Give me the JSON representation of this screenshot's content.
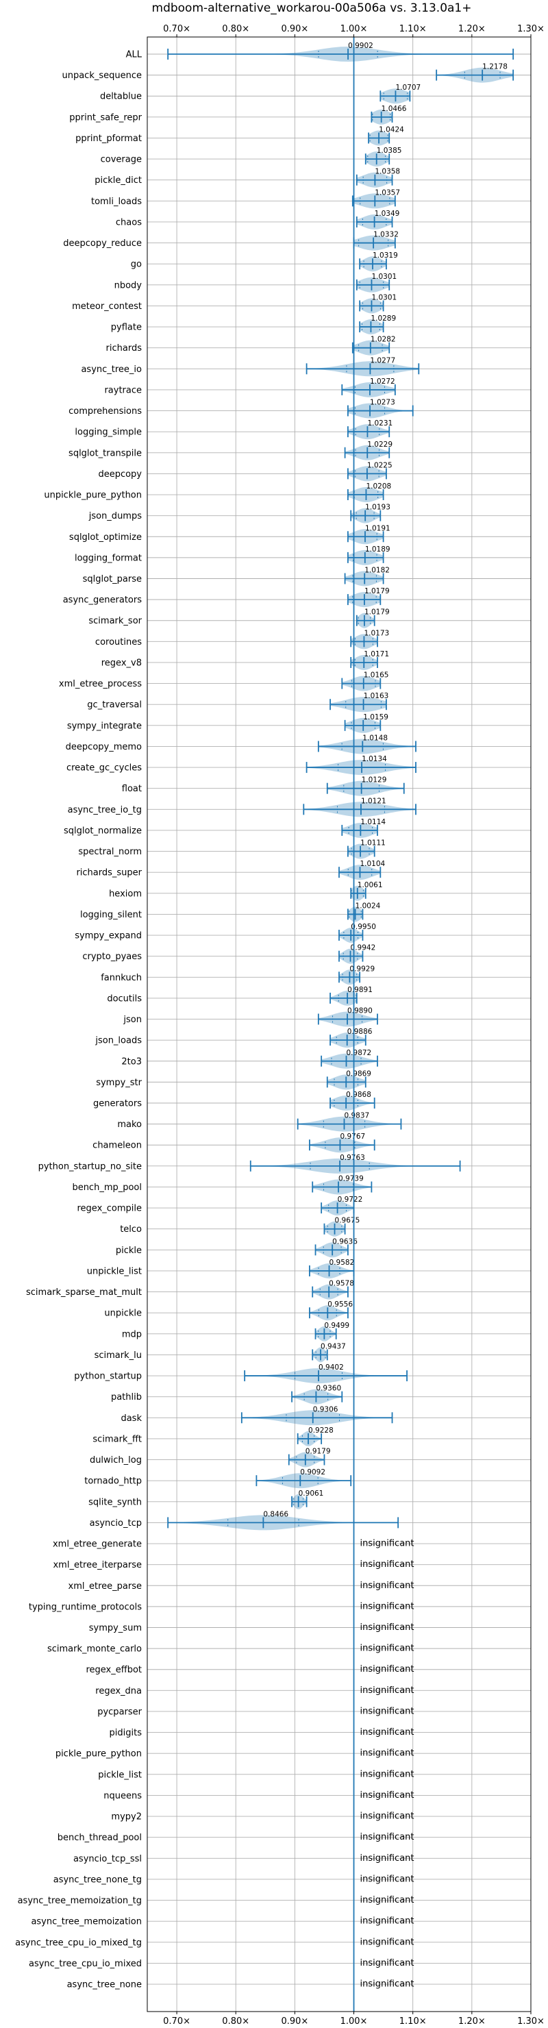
{
  "chart_data": {
    "type": "violin",
    "title": "mdboom-alternative_workarou-00a506a vs. 3.13.0a1+",
    "xlim": [
      0.65,
      1.3
    ],
    "xticks": [
      0.7,
      0.8,
      0.9,
      1.0,
      1.1,
      1.2,
      1.3
    ],
    "xtick_labels": [
      "0.70×",
      "0.80×",
      "0.90×",
      "1.00×",
      "1.10×",
      "1.20×",
      "1.30×"
    ],
    "reference_line": 1.0,
    "grid": true,
    "color": "#1f77b4",
    "benchmarks": [
      {
        "name": "ALL",
        "value": 0.9902,
        "label": "0.9902",
        "min": 0.685,
        "max": 1.27,
        "spread": 0.05
      },
      {
        "name": "unpack_sequence",
        "value": 1.2178,
        "label": "1.2178",
        "min": 1.14,
        "max": 1.27,
        "spread": 0.03
      },
      {
        "name": "deltablue",
        "value": 1.0707,
        "label": "1.0707",
        "min": 1.045,
        "max": 1.095,
        "spread": 0.02
      },
      {
        "name": "pprint_safe_repr",
        "value": 1.0466,
        "label": "1.0466",
        "min": 1.03,
        "max": 1.065,
        "spread": 0.015
      },
      {
        "name": "pprint_pformat",
        "value": 1.0424,
        "label": "1.0424",
        "min": 1.025,
        "max": 1.06,
        "spread": 0.015
      },
      {
        "name": "coverage",
        "value": 1.0385,
        "label": "1.0385",
        "min": 1.02,
        "max": 1.06,
        "spread": 0.015
      },
      {
        "name": "pickle_dict",
        "value": 1.0358,
        "label": "1.0358",
        "min": 1.005,
        "max": 1.065,
        "spread": 0.02
      },
      {
        "name": "tomli_loads",
        "value": 1.0357,
        "label": "1.0357",
        "min": 0.998,
        "max": 1.07,
        "spread": 0.025
      },
      {
        "name": "chaos",
        "value": 1.0349,
        "label": "1.0349",
        "min": 1.005,
        "max": 1.065,
        "spread": 0.02
      },
      {
        "name": "deepcopy_reduce",
        "value": 1.0332,
        "label": "1.0332",
        "min": 1.0,
        "max": 1.07,
        "spread": 0.025
      },
      {
        "name": "go",
        "value": 1.0319,
        "label": "1.0319",
        "min": 1.01,
        "max": 1.055,
        "spread": 0.015
      },
      {
        "name": "nbody",
        "value": 1.0301,
        "label": "1.0301",
        "min": 1.005,
        "max": 1.06,
        "spread": 0.02
      },
      {
        "name": "meteor_contest",
        "value": 1.0301,
        "label": "1.0301",
        "min": 1.01,
        "max": 1.05,
        "spread": 0.015
      },
      {
        "name": "pyflate",
        "value": 1.0289,
        "label": "1.0289",
        "min": 1.01,
        "max": 1.05,
        "spread": 0.015
      },
      {
        "name": "richards",
        "value": 1.0282,
        "label": "1.0282",
        "min": 0.998,
        "max": 1.06,
        "spread": 0.02
      },
      {
        "name": "async_tree_io",
        "value": 1.0277,
        "label": "1.0277",
        "min": 0.92,
        "max": 1.11,
        "spread": 0.04
      },
      {
        "name": "raytrace",
        "value": 1.0272,
        "label": "1.0272",
        "min": 0.98,
        "max": 1.07,
        "spread": 0.025
      },
      {
        "name": "comprehensions",
        "value": 1.0273,
        "label": "1.0273",
        "min": 0.99,
        "max": 1.1,
        "spread": 0.025
      },
      {
        "name": "logging_simple",
        "value": 1.0231,
        "label": "1.0231",
        "min": 0.99,
        "max": 1.06,
        "spread": 0.02
      },
      {
        "name": "sqlglot_transpile",
        "value": 1.0229,
        "label": "1.0229",
        "min": 0.985,
        "max": 1.06,
        "spread": 0.02
      },
      {
        "name": "deepcopy",
        "value": 1.0225,
        "label": "1.0225",
        "min": 0.99,
        "max": 1.055,
        "spread": 0.02
      },
      {
        "name": "unpickle_pure_python",
        "value": 1.0208,
        "label": "1.0208",
        "min": 0.99,
        "max": 1.05,
        "spread": 0.02
      },
      {
        "name": "json_dumps",
        "value": 1.0193,
        "label": "1.0193",
        "min": 0.995,
        "max": 1.045,
        "spread": 0.015
      },
      {
        "name": "sqlglot_optimize",
        "value": 1.0191,
        "label": "1.0191",
        "min": 0.99,
        "max": 1.05,
        "spread": 0.02
      },
      {
        "name": "logging_format",
        "value": 1.0189,
        "label": "1.0189",
        "min": 0.99,
        "max": 1.05,
        "spread": 0.02
      },
      {
        "name": "sqlglot_parse",
        "value": 1.0182,
        "label": "1.0182",
        "min": 0.985,
        "max": 1.05,
        "spread": 0.02
      },
      {
        "name": "async_generators",
        "value": 1.0179,
        "label": "1.0179",
        "min": 0.99,
        "max": 1.045,
        "spread": 0.02
      },
      {
        "name": "scimark_sor",
        "value": 1.0179,
        "label": "1.0179",
        "min": 1.005,
        "max": 1.035,
        "spread": 0.01
      },
      {
        "name": "coroutines",
        "value": 1.0173,
        "label": "1.0173",
        "min": 0.995,
        "max": 1.04,
        "spread": 0.015
      },
      {
        "name": "regex_v8",
        "value": 1.0171,
        "label": "1.0171",
        "min": 0.995,
        "max": 1.04,
        "spread": 0.015
      },
      {
        "name": "xml_etree_process",
        "value": 1.0165,
        "label": "1.0165",
        "min": 0.98,
        "max": 1.045,
        "spread": 0.02
      },
      {
        "name": "gc_traversal",
        "value": 1.0163,
        "label": "1.0163",
        "min": 0.96,
        "max": 1.055,
        "spread": 0.03
      },
      {
        "name": "sympy_integrate",
        "value": 1.0159,
        "label": "1.0159",
        "min": 0.985,
        "max": 1.045,
        "spread": 0.02
      },
      {
        "name": "deepcopy_memo",
        "value": 1.0148,
        "label": "1.0148",
        "min": 0.94,
        "max": 1.105,
        "spread": 0.035
      },
      {
        "name": "create_gc_cycles",
        "value": 1.0134,
        "label": "1.0134",
        "min": 0.92,
        "max": 1.105,
        "spread": 0.04
      },
      {
        "name": "float",
        "value": 1.0129,
        "label": "1.0129",
        "min": 0.955,
        "max": 1.085,
        "spread": 0.03
      },
      {
        "name": "async_tree_io_tg",
        "value": 1.0121,
        "label": "1.0121",
        "min": 0.915,
        "max": 1.105,
        "spread": 0.04
      },
      {
        "name": "sqlglot_normalize",
        "value": 1.0114,
        "label": "1.0114",
        "min": 0.98,
        "max": 1.04,
        "spread": 0.02
      },
      {
        "name": "spectral_norm",
        "value": 1.0111,
        "label": "1.0111",
        "min": 0.99,
        "max": 1.035,
        "spread": 0.015
      },
      {
        "name": "richards_super",
        "value": 1.0104,
        "label": "1.0104",
        "min": 0.975,
        "max": 1.045,
        "spread": 0.02
      },
      {
        "name": "hexiom",
        "value": 1.0061,
        "label": "1.0061",
        "min": 0.995,
        "max": 1.02,
        "spread": 0.01
      },
      {
        "name": "logging_silent",
        "value": 1.0024,
        "label": "1.0024",
        "min": 0.99,
        "max": 1.015,
        "spread": 0.01
      },
      {
        "name": "sympy_expand",
        "value": 0.995,
        "label": "0.9950",
        "min": 0.975,
        "max": 1.015,
        "spread": 0.012
      },
      {
        "name": "crypto_pyaes",
        "value": 0.9942,
        "label": "0.9942",
        "min": 0.975,
        "max": 1.015,
        "spread": 0.012
      },
      {
        "name": "fannkuch",
        "value": 0.9929,
        "label": "0.9929",
        "min": 0.975,
        "max": 1.01,
        "spread": 0.012
      },
      {
        "name": "docutils",
        "value": 0.9891,
        "label": "0.9891",
        "min": 0.96,
        "max": 1.005,
        "spread": 0.015
      },
      {
        "name": "json",
        "value": 0.989,
        "label": "0.9890",
        "min": 0.94,
        "max": 1.04,
        "spread": 0.025
      },
      {
        "name": "json_loads",
        "value": 0.9886,
        "label": "0.9886",
        "min": 0.96,
        "max": 1.02,
        "spread": 0.018
      },
      {
        "name": "2to3",
        "value": 0.9872,
        "label": "0.9872",
        "min": 0.945,
        "max": 1.04,
        "spread": 0.025
      },
      {
        "name": "sympy_str",
        "value": 0.9869,
        "label": "0.9869",
        "min": 0.955,
        "max": 1.02,
        "spread": 0.02
      },
      {
        "name": "generators",
        "value": 0.9868,
        "label": "0.9868",
        "min": 0.96,
        "max": 1.035,
        "spread": 0.02
      },
      {
        "name": "mako",
        "value": 0.9837,
        "label": "0.9837",
        "min": 0.905,
        "max": 1.08,
        "spread": 0.035
      },
      {
        "name": "chameleon",
        "value": 0.9767,
        "label": "0.9767",
        "min": 0.925,
        "max": 1.035,
        "spread": 0.025
      },
      {
        "name": "python_startup_no_site",
        "value": 0.9763,
        "label": "0.9763",
        "min": 0.825,
        "max": 1.18,
        "spread": 0.05
      },
      {
        "name": "bench_mp_pool",
        "value": 0.9739,
        "label": "0.9739",
        "min": 0.93,
        "max": 1.03,
        "spread": 0.025
      },
      {
        "name": "regex_compile",
        "value": 0.9722,
        "label": "0.9722",
        "min": 0.945,
        "max": 1.0,
        "spread": 0.015
      },
      {
        "name": "telco",
        "value": 0.9675,
        "label": "0.9675",
        "min": 0.95,
        "max": 0.985,
        "spread": 0.012
      },
      {
        "name": "pickle",
        "value": 0.9636,
        "label": "0.9636",
        "min": 0.935,
        "max": 0.99,
        "spread": 0.015
      },
      {
        "name": "unpickle_list",
        "value": 0.9582,
        "label": "0.9582",
        "min": 0.925,
        "max": 1.0,
        "spread": 0.018
      },
      {
        "name": "scimark_sparse_mat_mult",
        "value": 0.9578,
        "label": "0.9578",
        "min": 0.93,
        "max": 0.99,
        "spread": 0.015
      },
      {
        "name": "unpickle",
        "value": 0.9556,
        "label": "0.9556",
        "min": 0.925,
        "max": 0.99,
        "spread": 0.015
      },
      {
        "name": "mdp",
        "value": 0.9499,
        "label": "0.9499",
        "min": 0.935,
        "max": 0.97,
        "spread": 0.01
      },
      {
        "name": "scimark_lu",
        "value": 0.9437,
        "label": "0.9437",
        "min": 0.93,
        "max": 0.955,
        "spread": 0.008
      },
      {
        "name": "python_startup",
        "value": 0.9402,
        "label": "0.9402",
        "min": 0.815,
        "max": 1.09,
        "spread": 0.04
      },
      {
        "name": "pathlib",
        "value": 0.936,
        "label": "0.9360",
        "min": 0.895,
        "max": 0.98,
        "spread": 0.02
      },
      {
        "name": "dask",
        "value": 0.9306,
        "label": "0.9306",
        "min": 0.81,
        "max": 1.065,
        "spread": 0.045
      },
      {
        "name": "scimark_fft",
        "value": 0.9228,
        "label": "0.9228",
        "min": 0.905,
        "max": 0.945,
        "spread": 0.01
      },
      {
        "name": "dulwich_log",
        "value": 0.9179,
        "label": "0.9179",
        "min": 0.89,
        "max": 0.95,
        "spread": 0.015
      },
      {
        "name": "tornado_http",
        "value": 0.9092,
        "label": "0.9092",
        "min": 0.835,
        "max": 0.995,
        "spread": 0.03
      },
      {
        "name": "sqlite_synth",
        "value": 0.9061,
        "label": "0.9061",
        "min": 0.895,
        "max": 0.92,
        "spread": 0.008
      },
      {
        "name": "asyncio_tcp",
        "value": 0.8466,
        "label": "0.8466",
        "min": 0.685,
        "max": 1.075,
        "spread": 0.06
      }
    ],
    "insignificant_label": "insignificant",
    "insignificant": [
      "xml_etree_generate",
      "xml_etree_iterparse",
      "xml_etree_parse",
      "typing_runtime_protocols",
      "sympy_sum",
      "scimark_monte_carlo",
      "regex_effbot",
      "regex_dna",
      "pycparser",
      "pidigits",
      "pickle_pure_python",
      "pickle_list",
      "nqueens",
      "mypy2",
      "bench_thread_pool",
      "asyncio_tcp_ssl",
      "async_tree_none_tg",
      "async_tree_memoization_tg",
      "async_tree_memoization",
      "async_tree_cpu_io_mixed_tg",
      "async_tree_cpu_io_mixed",
      "async_tree_none"
    ]
  }
}
